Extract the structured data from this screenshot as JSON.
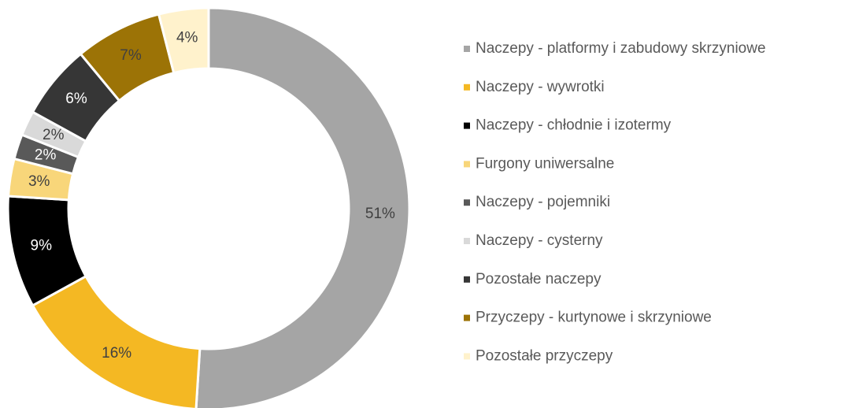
{
  "chart_data": {
    "type": "donut",
    "categories": [
      "Naczepy - platformy i zabudowy skrzyniowe",
      "Naczepy - wywrotki",
      "Naczepy - chłodnie i izotermy",
      "Furgony uniwersalne",
      "Naczepy - pojemniki",
      "Naczepy - cysterny",
      "Pozostałe naczepy",
      "Przyczepy - kurtynowe i skrzyniowe",
      "Pozostałe przyczepy"
    ],
    "values": [
      51,
      16,
      9,
      3,
      2,
      2,
      6,
      7,
      4
    ],
    "value_labels": [
      "51%",
      "16%",
      "9%",
      "3%",
      "2%",
      "2%",
      "6%",
      "7%",
      "4%"
    ],
    "colors": [
      "#a5a5a5",
      "#f4b823",
      "#000000",
      "#f8d67a",
      "#595959",
      "#d9d9d9",
      "#363636",
      "#9c7306",
      "#fff2cc"
    ],
    "legend": "right"
  }
}
